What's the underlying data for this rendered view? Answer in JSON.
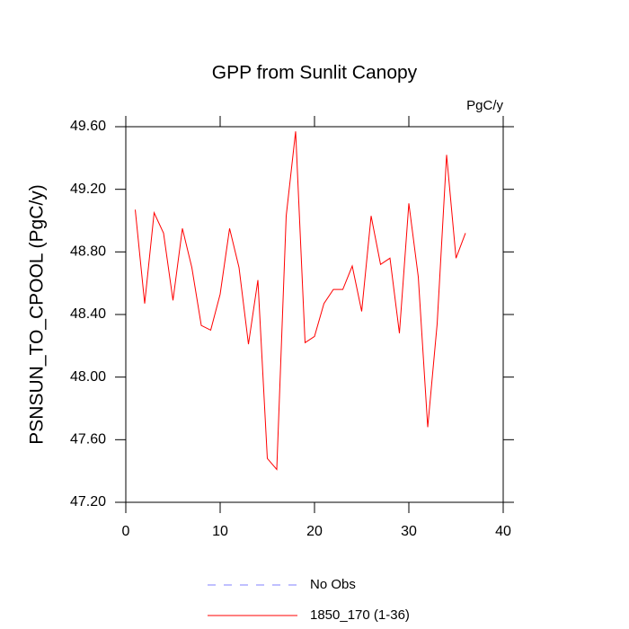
{
  "chart_data": {
    "type": "line",
    "title": "GPP from Sunlit Canopy",
    "units": "PgC/y",
    "y_label": "PSNSUN_TO_CPOOL  (PgC/y)",
    "x": [
      1,
      2,
      3,
      4,
      5,
      6,
      7,
      8,
      9,
      10,
      11,
      12,
      13,
      14,
      15,
      16,
      17,
      18,
      19,
      20,
      21,
      22,
      23,
      24,
      25,
      26,
      27,
      28,
      29,
      30,
      31,
      32,
      33,
      34,
      35,
      36
    ],
    "series": [
      {
        "name": "1850_170 (1-36)",
        "color": "#ff0000",
        "values": [
          49.07,
          48.47,
          49.05,
          48.92,
          48.49,
          48.95,
          48.7,
          48.33,
          48.3,
          48.53,
          48.95,
          48.7,
          48.21,
          48.62,
          47.48,
          47.41,
          49.03,
          49.57,
          48.22,
          48.26,
          48.47,
          48.56,
          48.56,
          48.71,
          48.42,
          49.03,
          48.72,
          48.76,
          48.28,
          49.11,
          48.64,
          47.68,
          48.34,
          49.42,
          48.76,
          48.92
        ]
      }
    ],
    "reference": {
      "name": "No Obs",
      "color": "#8080ff",
      "dashed": true
    },
    "xlim": [
      0,
      40
    ],
    "xticks": [
      0,
      10,
      20,
      30,
      40
    ],
    "ylim": [
      47.2,
      49.6
    ],
    "yticks": [
      {
        "value": 47.2,
        "label": "47.20"
      },
      {
        "value": 47.6,
        "label": "47.60"
      },
      {
        "value": 48.0,
        "label": "48.00"
      },
      {
        "value": 48.4,
        "label": "48.40"
      },
      {
        "value": 48.8,
        "label": "48.80"
      },
      {
        "value": 49.2,
        "label": "49.20"
      },
      {
        "value": 49.6,
        "label": "49.60"
      }
    ],
    "grid": false
  }
}
